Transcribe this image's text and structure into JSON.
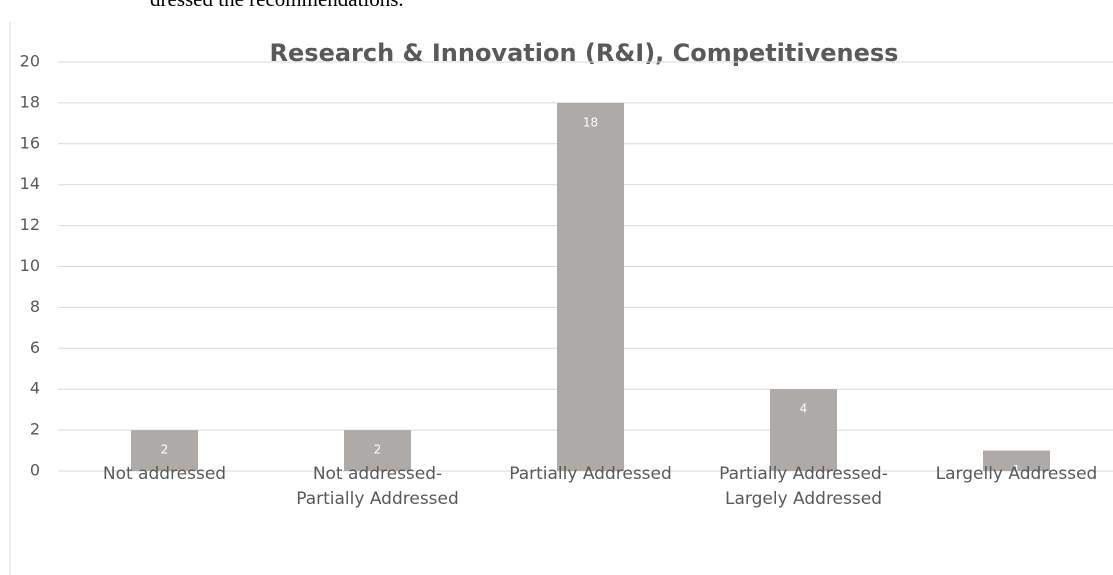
{
  "header_text": "dressed the recommendations.",
  "chart_data": {
    "type": "bar",
    "title": "Research & Innovation (R&I), Competitiveness",
    "categories": [
      "Not addressed",
      "Not addressed-\nPartially Addressed",
      "Partially Addressed",
      "Partially Addressed-\nLargely Addressed",
      "Largelly Addressed"
    ],
    "values": [
      2,
      2,
      18,
      4,
      1
    ],
    "color": "#aeaaa8",
    "ylim": [
      0,
      20
    ],
    "yticks": [
      0,
      2,
      4,
      6,
      8,
      10,
      12,
      14,
      16,
      18,
      20
    ],
    "grid": true
  }
}
